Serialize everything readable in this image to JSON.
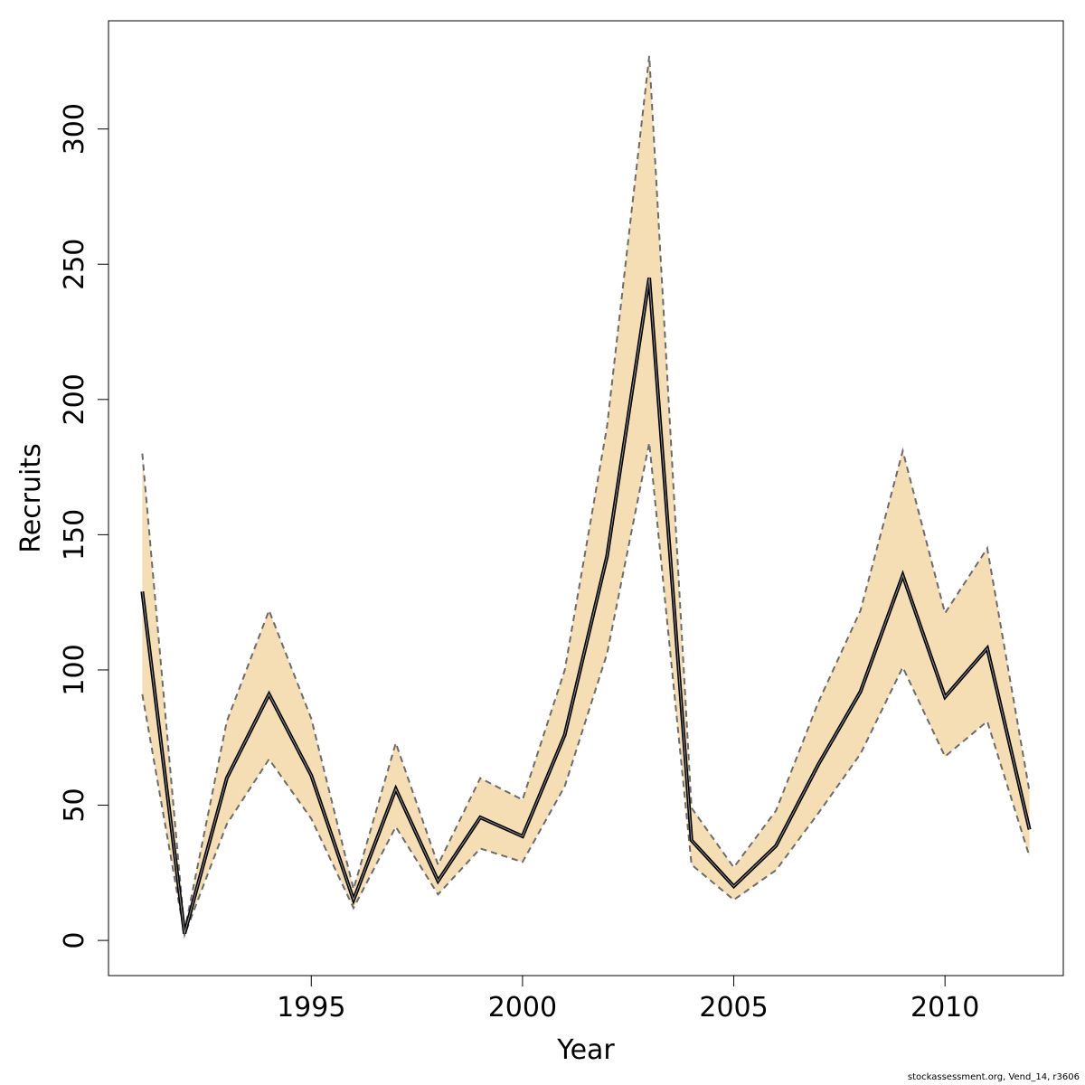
{
  "chart_data": {
    "type": "area",
    "xlabel": "Year",
    "ylabel": "Recruits",
    "xlim": [
      1990.2,
      2012.8
    ],
    "ylim": [
      -13,
      340
    ],
    "x_ticks": [
      1995,
      2000,
      2005,
      2010
    ],
    "y_ticks": [
      0,
      50,
      100,
      150,
      200,
      250,
      300
    ],
    "grid": false,
    "legend": "none",
    "series": [
      {
        "years": [
          1991,
          1992,
          1993,
          1994,
          1995,
          1996,
          1997,
          1998,
          1999,
          2000,
          2001,
          2002,
          2003,
          2004,
          2005,
          2006,
          2007,
          2008,
          2009,
          2010,
          2011,
          2012
        ],
        "estimate": [
          129,
          2.5,
          60,
          91,
          61,
          15,
          56,
          22,
          45.5,
          38.5,
          76,
          142,
          245,
          37,
          20,
          35,
          65,
          92,
          135,
          90,
          108,
          41
        ],
        "upper": [
          180,
          3.5,
          81,
          122,
          82,
          19,
          73,
          28,
          60,
          52,
          100,
          190,
          327,
          49,
          27,
          48,
          88,
          122,
          181,
          121,
          145,
          55
        ],
        "lower": [
          91,
          2,
          43,
          67,
          45,
          12,
          42,
          17,
          34,
          29,
          57,
          106,
          184,
          28,
          15,
          26,
          47,
          69,
          101,
          68,
          81,
          31
        ]
      }
    ],
    "colors": {
      "band": "#f5deb3",
      "estimate_line": "#000000",
      "interval_line": "#6b6b6b",
      "axis": "#000000"
    }
  },
  "footer": "stockassessment.org, Vend_14, r3606"
}
